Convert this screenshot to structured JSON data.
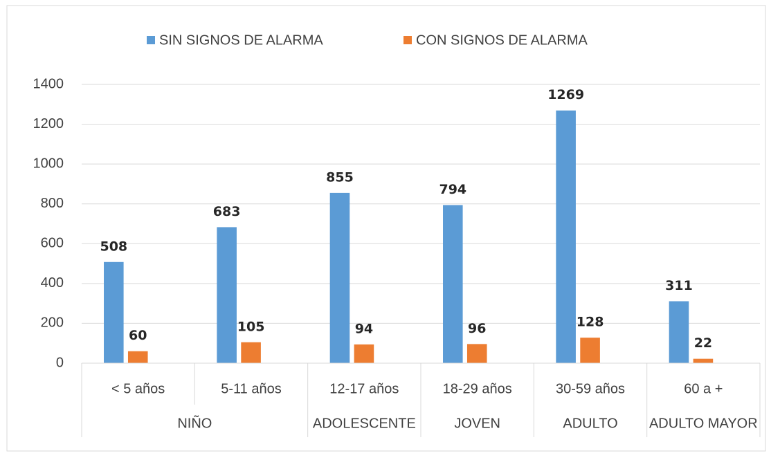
{
  "chart_data": {
    "type": "bar",
    "categories": [
      "< 5 años",
      "5-11 años",
      "12-17 años",
      "18-29 años",
      "30-59 años",
      "60 a +"
    ],
    "category_groups": [
      "NIÑO",
      "NIÑO",
      "ADOLESCENTE",
      "JOVEN",
      "ADULTO",
      "ADULTO MAYOR"
    ],
    "series": [
      {
        "name": "SIN SIGNOS DE ALARMA",
        "color": "#5b9bd5",
        "values": [
          508,
          683,
          855,
          794,
          1269,
          311
        ]
      },
      {
        "name": "CON SIGNOS DE ALARMA",
        "color": "#ed7d31",
        "values": [
          60,
          105,
          94,
          96,
          128,
          22
        ]
      }
    ],
    "ylim": [
      0,
      1400
    ],
    "yticks": [
      0,
      200,
      400,
      600,
      800,
      1000,
      1200,
      1400
    ],
    "grid": true,
    "legend": "top"
  }
}
